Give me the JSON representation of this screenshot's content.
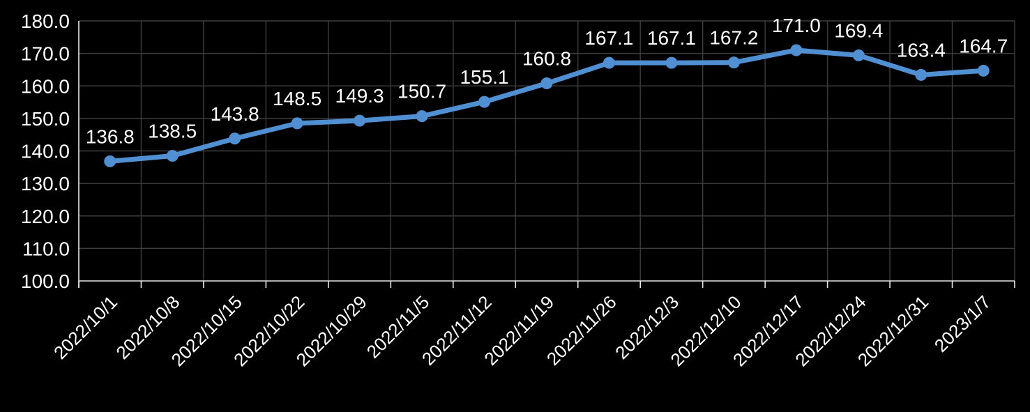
{
  "chart_data": {
    "type": "line",
    "title": "",
    "xlabel": "",
    "ylabel": "",
    "x": [
      "2022/10/1",
      "2022/10/8",
      "2022/10/15",
      "2022/10/22",
      "2022/10/29",
      "2022/11/5",
      "2022/11/12",
      "2022/11/19",
      "2022/11/26",
      "2022/12/3",
      "2022/12/10",
      "2022/12/17",
      "2022/12/24",
      "2022/12/31",
      "2023/1/7"
    ],
    "series": [
      {
        "name": "series-1",
        "values": [
          136.8,
          138.5,
          143.8,
          148.5,
          149.3,
          150.7,
          155.1,
          160.8,
          167.1,
          167.1,
          167.2,
          171.0,
          169.4,
          163.4,
          164.7
        ]
      }
    ],
    "data_labels": [
      "136.8",
      "138.5",
      "143.8",
      "148.5",
      "149.3",
      "150.7",
      "155.1",
      "160.8",
      "167.1",
      "167.1",
      "167.2",
      "171.0",
      "169.4",
      "163.4",
      "164.7"
    ],
    "ylim": [
      100,
      180
    ],
    "ytick_step": 10,
    "ytick_labels": [
      "100.0",
      "110.0",
      "120.0",
      "130.0",
      "140.0",
      "150.0",
      "160.0",
      "170.0",
      "180.0"
    ],
    "grid": true,
    "legend_position": "none",
    "x_label_rotation_deg": -45,
    "colors": {
      "background": "#000000",
      "line": "#4F8FD2",
      "marker": "#4F8FD2",
      "gridline": "#3D3D3D",
      "axis_line": "#E6E6E6",
      "text": "#FFFFFF"
    }
  }
}
